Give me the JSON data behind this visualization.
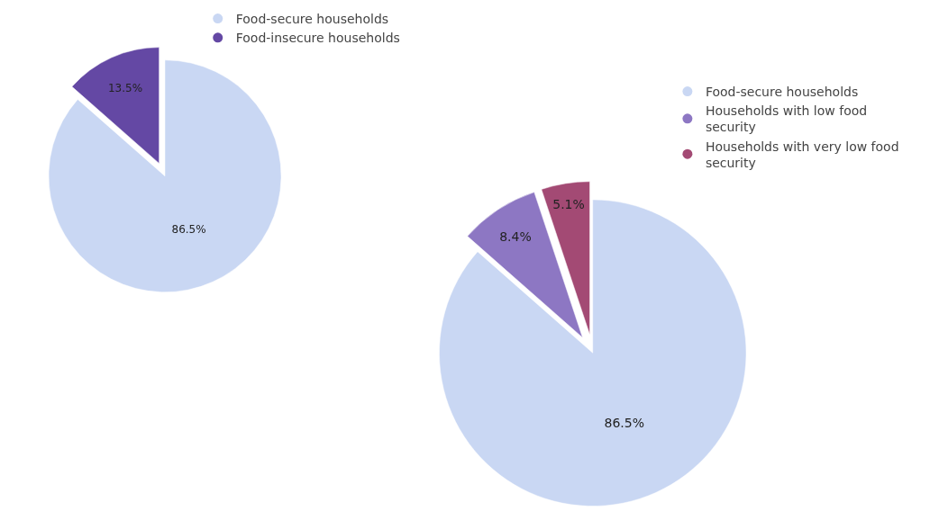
{
  "chart_data": [
    {
      "type": "pie",
      "categories": [
        "Food-secure households",
        "Food-insecure households"
      ],
      "values": [
        86.5,
        13.5
      ],
      "colors": [
        "#c9d7f3",
        "#6448a4"
      ],
      "value_labels": [
        "86.5%",
        "13.5%"
      ],
      "legend": "top right"
    },
    {
      "type": "pie",
      "categories": [
        "Food-secure households",
        "Households with low food security",
        "Households with very low food security"
      ],
      "values": [
        86.5,
        8.4,
        5.1
      ],
      "colors": [
        "#c9d7f3",
        "#8d77c3",
        "#a34a74"
      ],
      "value_labels": [
        "86.5%",
        "8.4%",
        "5.1%"
      ],
      "legend": "top right"
    }
  ]
}
